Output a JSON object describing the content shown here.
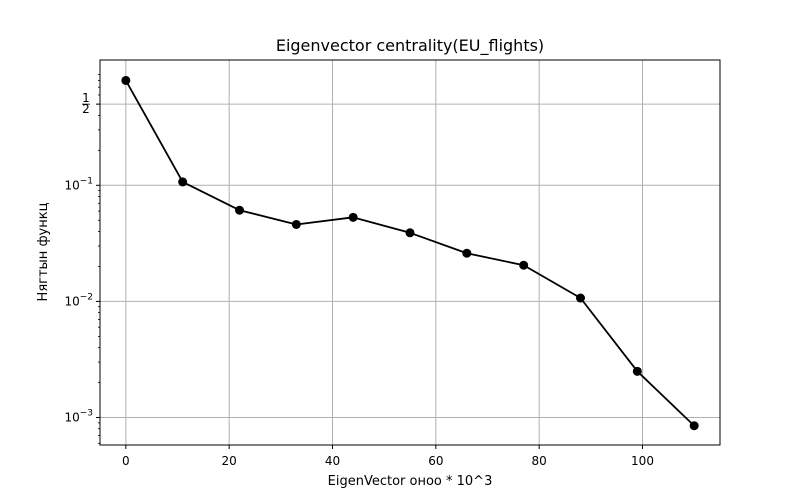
{
  "chart_data": {
    "type": "line",
    "title": "Eigenvector centrality(EU_flights)",
    "xlabel": "EigenVector оноо * 10^3",
    "ylabel": "Нягтын функц",
    "x": [
      0,
      11,
      22,
      33,
      44,
      55,
      66,
      77,
      88,
      99,
      110
    ],
    "series": [
      {
        "values": [
          0.8,
          0.107,
          0.061,
          0.046,
          0.053,
          0.039,
          0.026,
          0.0205,
          0.0107,
          0.0025,
          0.00085
        ]
      }
    ],
    "xlim": [
      -5,
      115
    ],
    "ylim": [
      0.00058,
      1.2
    ],
    "yscale": "log",
    "grid": true,
    "legend": "none",
    "x_ticks": [
      {
        "value": 0,
        "label": "0"
      },
      {
        "value": 20,
        "label": "20"
      },
      {
        "value": 40,
        "label": "40"
      },
      {
        "value": 60,
        "label": "60"
      },
      {
        "value": 80,
        "label": "80"
      },
      {
        "value": 100,
        "label": "100"
      }
    ],
    "y_ticks": [
      {
        "value": 0.5,
        "label": "1/2",
        "style": "fraction",
        "numerator": "1",
        "denominator": "2"
      },
      {
        "value": 0.1,
        "label": "10^-1",
        "style": "power",
        "base": "10",
        "exponent": "−1"
      },
      {
        "value": 0.01,
        "label": "10^-2",
        "style": "power",
        "base": "10",
        "exponent": "−2"
      },
      {
        "value": 0.001,
        "label": "10^-3",
        "style": "power",
        "base": "10",
        "exponent": "−3"
      }
    ],
    "colors": {
      "line": "#000000",
      "marker": "#000000",
      "grid": "#b0b0b0",
      "axes": "#000000"
    }
  }
}
